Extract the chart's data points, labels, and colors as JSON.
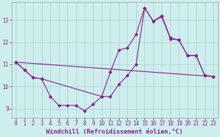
{
  "bg_color": "#ceeeed",
  "grid_color": "#aad4d4",
  "line_color": "#882288",
  "marker": "D",
  "markersize": 2.5,
  "xlabel": "Windchill (Refroidissement éolien,°C)",
  "xlabel_color": "#882288",
  "xlim": [
    -0.5,
    23.5
  ],
  "ylim": [
    8.6,
    13.8
  ],
  "yticks": [
    9,
    10,
    11,
    12,
    13
  ],
  "xticks": [
    0,
    1,
    2,
    3,
    4,
    5,
    6,
    7,
    8,
    9,
    10,
    11,
    12,
    13,
    14,
    15,
    16,
    17,
    18,
    19,
    20,
    21,
    22,
    23
  ],
  "tick_fontsize": 5.5,
  "xlabel_fontsize": 6.5,
  "series1_x": [
    0,
    1,
    2,
    3,
    4,
    5,
    6,
    7,
    8,
    9,
    10,
    11,
    12,
    13,
    14,
    15,
    16,
    17,
    18,
    19,
    20,
    21,
    22,
    23
  ],
  "series1_y": [
    11.1,
    10.75,
    10.4,
    10.35,
    9.55,
    9.15,
    9.15,
    9.15,
    8.9,
    9.2,
    9.55,
    10.65,
    11.65,
    11.75,
    12.35,
    13.55,
    12.95,
    13.15,
    12.15,
    12.1,
    11.4,
    11.4,
    10.5,
    10.45
  ],
  "series2_x": [
    0,
    1,
    2,
    3,
    10,
    11,
    12,
    13,
    14,
    15,
    16,
    17,
    18,
    19,
    20,
    21,
    22,
    23
  ],
  "series2_y": [
    11.1,
    10.75,
    10.4,
    10.35,
    9.55,
    9.55,
    10.1,
    10.5,
    11.0,
    13.55,
    12.95,
    13.2,
    12.2,
    12.1,
    11.4,
    11.4,
    10.5,
    10.45
  ],
  "series3_x": [
    0,
    23
  ],
  "series3_y": [
    11.1,
    10.45
  ]
}
